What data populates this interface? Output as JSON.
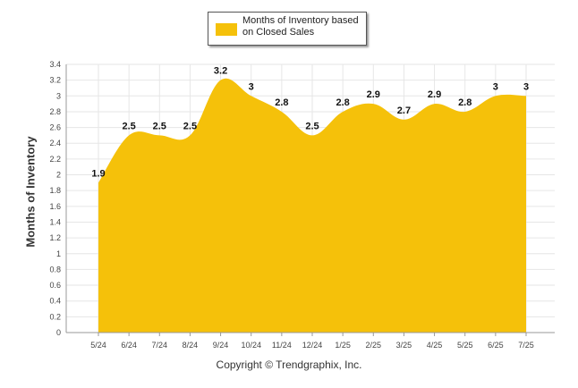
{
  "chart_data": {
    "type": "area",
    "categories": [
      "5/24",
      "6/24",
      "7/24",
      "8/24",
      "9/24",
      "10/24",
      "11/24",
      "12/24",
      "1/25",
      "2/25",
      "3/25",
      "4/25",
      "5/25",
      "6/25",
      "7/25"
    ],
    "series": [
      {
        "name": "Months of Inventory based on Closed Sales",
        "values": [
          1.9,
          2.5,
          2.5,
          2.5,
          3.2,
          3,
          2.8,
          2.5,
          2.8,
          2.9,
          2.7,
          2.9,
          2.8,
          3,
          3
        ]
      }
    ],
    "ylabel": "Months of Inventory",
    "xlabel": "",
    "ylim": [
      0,
      3.4
    ],
    "yticks": [
      "0",
      "0.2",
      "0.4",
      "0.6",
      "0.8",
      "1",
      "1.2",
      "1.4",
      "1.6",
      "1.8",
      "2",
      "2.2",
      "2.4",
      "2.6",
      "2.8",
      "3",
      "3.2",
      "3.4"
    ],
    "grid": true,
    "legend_position": "top",
    "data_labels": [
      "1.9",
      "2.5",
      "2.5",
      "2.5",
      "3.2",
      "3",
      "2.8",
      "2.5",
      "2.8",
      "2.9",
      "2.7",
      "2.9",
      "2.8",
      "3",
      "3"
    ],
    "colors": {
      "area": "#f5c10a",
      "grid": "#e6e6e6",
      "axis": "#999999"
    }
  },
  "legend": {
    "label": "Months of Inventory based on Closed Sales"
  },
  "footer": {
    "copyright": "Copyright © Trendgraphix, Inc."
  }
}
